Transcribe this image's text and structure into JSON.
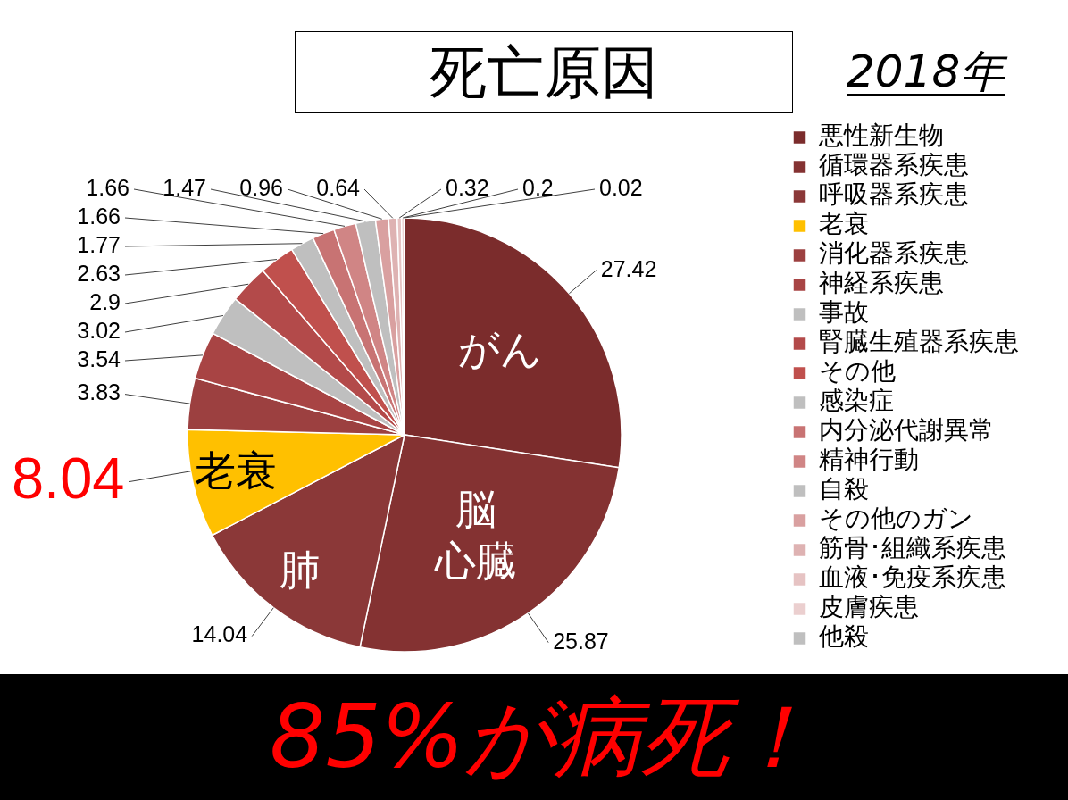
{
  "chart_data": {
    "type": "pie",
    "title": "死亡原因",
    "subtitle": "2018年",
    "categories": [
      "悪性新生物",
      "循環器系疾患",
      "呼吸器系疾患",
      "老衰",
      "消化器系疾患",
      "神経系疾患",
      "事故",
      "腎臓生殖器系疾患",
      "その他",
      "感染症",
      "内分泌代謝異常",
      "精神行動",
      "自殺",
      "その他のガン",
      "筋骨･組織系疾患",
      "血液･免疫系疾患",
      "皮膚疾患",
      "他殺"
    ],
    "values": [
      27.42,
      25.87,
      14.04,
      8.04,
      3.83,
      3.54,
      3.02,
      2.9,
      2.63,
      1.77,
      1.66,
      1.66,
      1.47,
      0.96,
      0.64,
      0.32,
      0.2,
      0.02
    ],
    "colors": [
      "#7b2c2c",
      "#843232",
      "#8b3838",
      "#ffc000",
      "#9c4040",
      "#a84444",
      "#bfbfbf",
      "#b34a4a",
      "#c0504d",
      "#bfbfbf",
      "#c87373",
      "#d08585",
      "#bfbfbf",
      "#d9a0a0",
      "#deb2b2",
      "#e6c3c3",
      "#ebcfcf",
      "#bfbfbf"
    ],
    "value_labels": [
      "27.42",
      "25.87",
      "14.04",
      null,
      "3.83",
      "3.54",
      "3.02",
      "2.9",
      "2.63",
      "1.77",
      "1.66",
      "1.66",
      "1.47",
      "0.96",
      "0.64",
      "0.32",
      "0.2",
      "0.02"
    ],
    "legend": "right",
    "annotations": [
      {
        "text": "がん",
        "x": "悪性新生物"
      },
      {
        "text": "脳心臓",
        "x": "循環器系疾患"
      },
      {
        "text": "肺",
        "x": "呼吸器系疾患"
      },
      {
        "text": "老衰",
        "x": "老衰"
      },
      {
        "text": "8.04",
        "x": "老衰"
      },
      "85%が病死！"
    ]
  }
}
